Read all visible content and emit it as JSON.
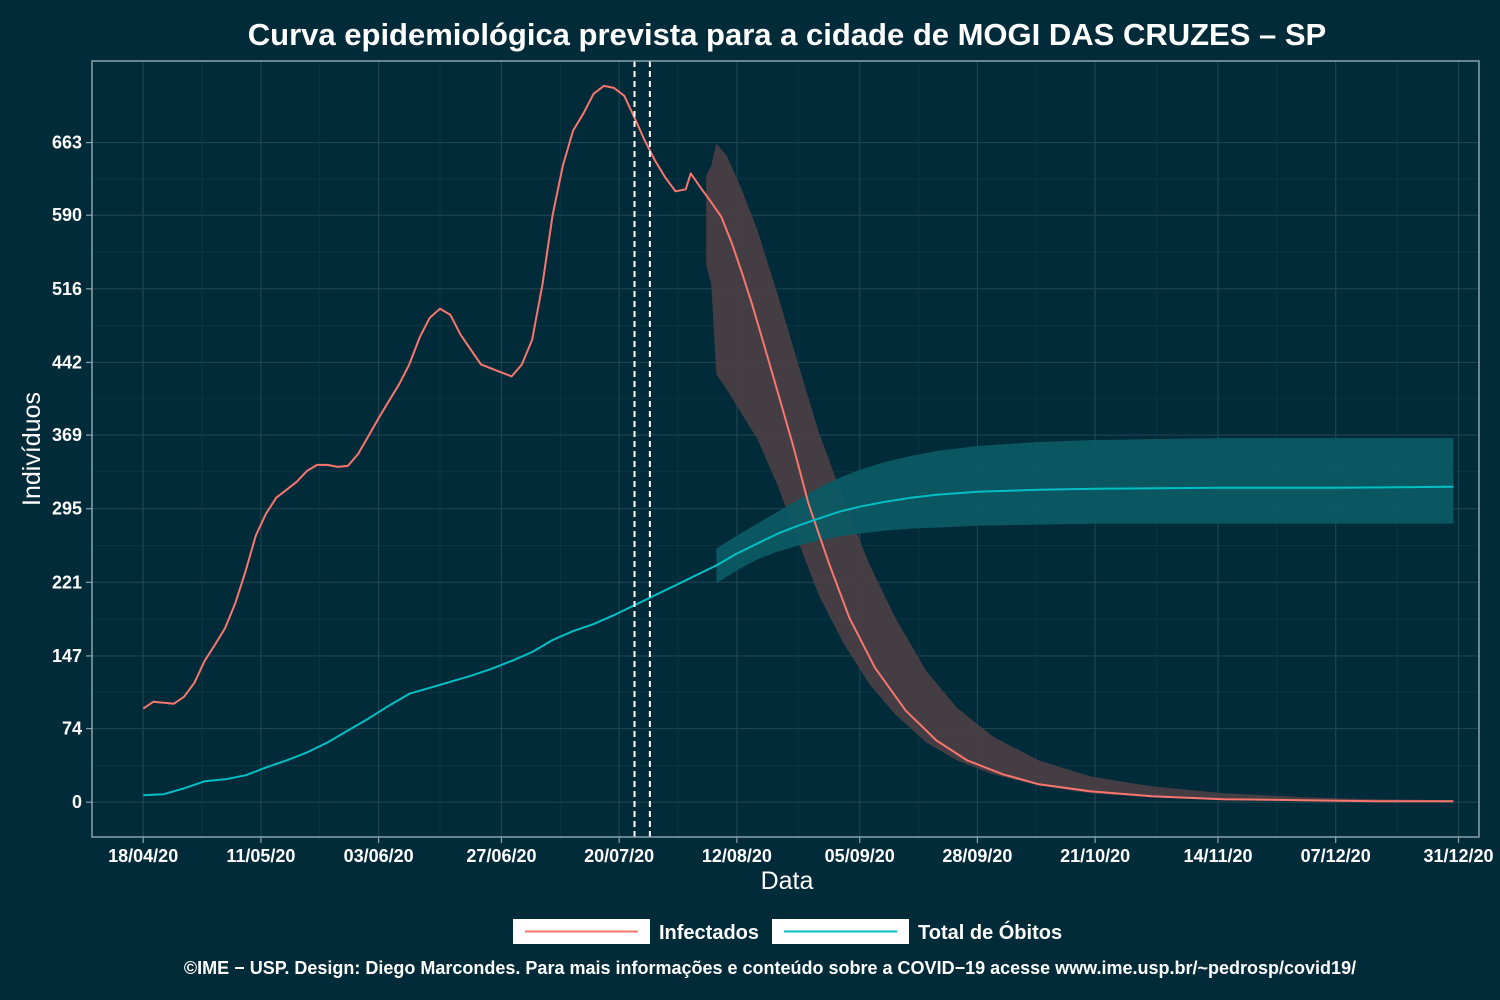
{
  "chart_data": {
    "type": "line",
    "title": "Curva epidemiológica prevista para a cidade de MOGI DAS CRUZES – SP",
    "xlabel": "Data",
    "ylabel": "Indivíduos",
    "x_range": [
      "2020-04-08",
      "2021-01-04"
    ],
    "ylim": [
      -35,
      745
    ],
    "grid": true,
    "legend_position": "bottom",
    "x_ticks": [
      {
        "date": "2020-04-18",
        "label": "18/04/20"
      },
      {
        "date": "2020-05-11",
        "label": "11/05/20"
      },
      {
        "date": "2020-06-03",
        "label": "03/06/20"
      },
      {
        "date": "2020-06-27",
        "label": "27/06/20"
      },
      {
        "date": "2020-07-20",
        "label": "20/07/20"
      },
      {
        "date": "2020-08-12",
        "label": "12/08/20"
      },
      {
        "date": "2020-09-05",
        "label": "05/09/20"
      },
      {
        "date": "2020-09-28",
        "label": "28/09/20"
      },
      {
        "date": "2020-10-21",
        "label": "21/10/20"
      },
      {
        "date": "2020-11-14",
        "label": "14/11/20"
      },
      {
        "date": "2020-12-07",
        "label": "07/12/20"
      },
      {
        "date": "2020-12-31",
        "label": "31/12/20"
      }
    ],
    "y_ticks": [
      0,
      74,
      147,
      221,
      295,
      369,
      442,
      516,
      590,
      663
    ],
    "vlines": [
      "2020-07-23",
      "2020-07-26"
    ],
    "series": [
      {
        "name": "Infectados",
        "color": "#f8766d",
        "values": [
          [
            "2020-04-18",
            94
          ],
          [
            "2020-04-20",
            101
          ],
          [
            "2020-04-22",
            100
          ],
          [
            "2020-04-24",
            99
          ],
          [
            "2020-04-26",
            106
          ],
          [
            "2020-04-28",
            120
          ],
          [
            "2020-04-30",
            142
          ],
          [
            "2020-05-02",
            158
          ],
          [
            "2020-05-04",
            175
          ],
          [
            "2020-05-06",
            200
          ],
          [
            "2020-05-08",
            232
          ],
          [
            "2020-05-10",
            268
          ],
          [
            "2020-05-12",
            290
          ],
          [
            "2020-05-14",
            306
          ],
          [
            "2020-05-16",
            314
          ],
          [
            "2020-05-18",
            322
          ],
          [
            "2020-05-20",
            333
          ],
          [
            "2020-05-22",
            339
          ],
          [
            "2020-05-24",
            339
          ],
          [
            "2020-05-26",
            337
          ],
          [
            "2020-05-28",
            338
          ],
          [
            "2020-05-30",
            350
          ],
          [
            "2020-06-01",
            368
          ],
          [
            "2020-06-03",
            386
          ],
          [
            "2020-06-05",
            403
          ],
          [
            "2020-06-07",
            420
          ],
          [
            "2020-06-09",
            440
          ],
          [
            "2020-06-11",
            467
          ],
          [
            "2020-06-13",
            487
          ],
          [
            "2020-06-15",
            496
          ],
          [
            "2020-06-17",
            490
          ],
          [
            "2020-06-19",
            470
          ],
          [
            "2020-06-21",
            455
          ],
          [
            "2020-06-23",
            440
          ],
          [
            "2020-06-25",
            436
          ],
          [
            "2020-06-27",
            432
          ],
          [
            "2020-06-29",
            428
          ],
          [
            "2020-07-01",
            440
          ],
          [
            "2020-07-03",
            465
          ],
          [
            "2020-07-05",
            520
          ],
          [
            "2020-07-07",
            590
          ],
          [
            "2020-07-09",
            640
          ],
          [
            "2020-07-11",
            675
          ],
          [
            "2020-07-13",
            692
          ],
          [
            "2020-07-15",
            712
          ],
          [
            "2020-07-17",
            720
          ],
          [
            "2020-07-19",
            718
          ],
          [
            "2020-07-21",
            710
          ],
          [
            "2020-07-23",
            688
          ],
          [
            "2020-07-25",
            665
          ],
          [
            "2020-07-27",
            645
          ],
          [
            "2020-07-29",
            628
          ],
          [
            "2020-07-31",
            614
          ],
          [
            "2020-08-02",
            616
          ],
          [
            "2020-08-03",
            632
          ],
          [
            "2020-08-05",
            617
          ],
          [
            "2020-08-07",
            603
          ],
          [
            "2020-08-09",
            588
          ],
          [
            "2020-08-11",
            562
          ],
          [
            "2020-08-13",
            532
          ],
          [
            "2020-08-15",
            500
          ],
          [
            "2020-08-17",
            465
          ],
          [
            "2020-08-20",
            412
          ],
          [
            "2020-08-23",
            358
          ],
          [
            "2020-08-26",
            300
          ],
          [
            "2020-08-30",
            240
          ],
          [
            "2020-09-03",
            185
          ],
          [
            "2020-09-08",
            135
          ],
          [
            "2020-09-14",
            92
          ],
          [
            "2020-09-20",
            62
          ],
          [
            "2020-09-26",
            42
          ],
          [
            "2020-10-03",
            28
          ],
          [
            "2020-10-10",
            18
          ],
          [
            "2020-10-20",
            11
          ],
          [
            "2020-11-01",
            6
          ],
          [
            "2020-11-15",
            3
          ],
          [
            "2020-12-01",
            2
          ],
          [
            "2020-12-15",
            1
          ],
          [
            "2020-12-30",
            1
          ]
        ],
        "band": [
          [
            "2020-08-06",
            540,
            630
          ],
          [
            "2020-08-07",
            520,
            640
          ],
          [
            "2020-08-08",
            430,
            662
          ],
          [
            "2020-08-10",
            415,
            650
          ],
          [
            "2020-08-13",
            390,
            615
          ],
          [
            "2020-08-16",
            365,
            575
          ],
          [
            "2020-08-20",
            318,
            510
          ],
          [
            "2020-08-24",
            262,
            440
          ],
          [
            "2020-08-28",
            208,
            372
          ],
          [
            "2020-09-02",
            158,
            302
          ],
          [
            "2020-09-07",
            118,
            238
          ],
          [
            "2020-09-12",
            88,
            185
          ],
          [
            "2020-09-18",
            60,
            132
          ],
          [
            "2020-09-24",
            42,
            95
          ],
          [
            "2020-10-01",
            28,
            66
          ],
          [
            "2020-10-10",
            17,
            42
          ],
          [
            "2020-10-20",
            9,
            26
          ],
          [
            "2020-11-01",
            5,
            16
          ],
          [
            "2020-11-15",
            2,
            9
          ],
          [
            "2020-12-01",
            1,
            5
          ],
          [
            "2020-12-15",
            0,
            3
          ],
          [
            "2020-12-30",
            0,
            2
          ]
        ]
      },
      {
        "name": "Total de Óbitos",
        "color": "#00bfc4",
        "values": [
          [
            "2020-04-18",
            7
          ],
          [
            "2020-04-22",
            8
          ],
          [
            "2020-04-26",
            14
          ],
          [
            "2020-04-30",
            21
          ],
          [
            "2020-05-04",
            23
          ],
          [
            "2020-05-08",
            27
          ],
          [
            "2020-05-12",
            35
          ],
          [
            "2020-05-16",
            42
          ],
          [
            "2020-05-20",
            50
          ],
          [
            "2020-05-24",
            60
          ],
          [
            "2020-05-28",
            72
          ],
          [
            "2020-06-01",
            84
          ],
          [
            "2020-06-05",
            97
          ],
          [
            "2020-06-09",
            109
          ],
          [
            "2020-06-13",
            115
          ],
          [
            "2020-06-17",
            121
          ],
          [
            "2020-06-21",
            127
          ],
          [
            "2020-06-25",
            134
          ],
          [
            "2020-06-29",
            142
          ],
          [
            "2020-07-03",
            151
          ],
          [
            "2020-07-07",
            163
          ],
          [
            "2020-07-11",
            172
          ],
          [
            "2020-07-15",
            179
          ],
          [
            "2020-07-19",
            188
          ],
          [
            "2020-07-23",
            198
          ],
          [
            "2020-07-27",
            208
          ],
          [
            "2020-07-31",
            218
          ],
          [
            "2020-08-04",
            228
          ],
          [
            "2020-08-08",
            238
          ],
          [
            "2020-08-12",
            250
          ],
          [
            "2020-08-16",
            260
          ],
          [
            "2020-08-20",
            270
          ],
          [
            "2020-08-24",
            278
          ],
          [
            "2020-08-28",
            285
          ],
          [
            "2020-09-01",
            292
          ],
          [
            "2020-09-05",
            297
          ],
          [
            "2020-09-10",
            302
          ],
          [
            "2020-09-15",
            306
          ],
          [
            "2020-09-20",
            309
          ],
          [
            "2020-09-28",
            312
          ],
          [
            "2020-10-10",
            314
          ],
          [
            "2020-10-21",
            315
          ],
          [
            "2020-11-14",
            316
          ],
          [
            "2020-12-07",
            316
          ],
          [
            "2020-12-30",
            317
          ]
        ],
        "band": [
          [
            "2020-08-08",
            220,
            255
          ],
          [
            "2020-08-12",
            233,
            268
          ],
          [
            "2020-08-16",
            244,
            280
          ],
          [
            "2020-08-20",
            252,
            292
          ],
          [
            "2020-08-24",
            258,
            304
          ],
          [
            "2020-08-28",
            263,
            316
          ],
          [
            "2020-09-01",
            267,
            326
          ],
          [
            "2020-09-05",
            270,
            334
          ],
          [
            "2020-09-10",
            273,
            342
          ],
          [
            "2020-09-15",
            275,
            348
          ],
          [
            "2020-09-20",
            276,
            353
          ],
          [
            "2020-09-28",
            278,
            358
          ],
          [
            "2020-10-10",
            279,
            362
          ],
          [
            "2020-10-21",
            280,
            364
          ],
          [
            "2020-11-14",
            280,
            366
          ],
          [
            "2020-12-07",
            280,
            366
          ],
          [
            "2020-12-30",
            280,
            366
          ]
        ]
      }
    ]
  },
  "legend": {
    "infectados_label": "Infectados",
    "obitos_label": "Total de Óbitos"
  },
  "caption": "©IME − USP. Design: Diego Marcondes. Para mais informações e conteúdo sobre a COVID−19 acesse www.ime.usp.br/~pedrosp/covid19/"
}
